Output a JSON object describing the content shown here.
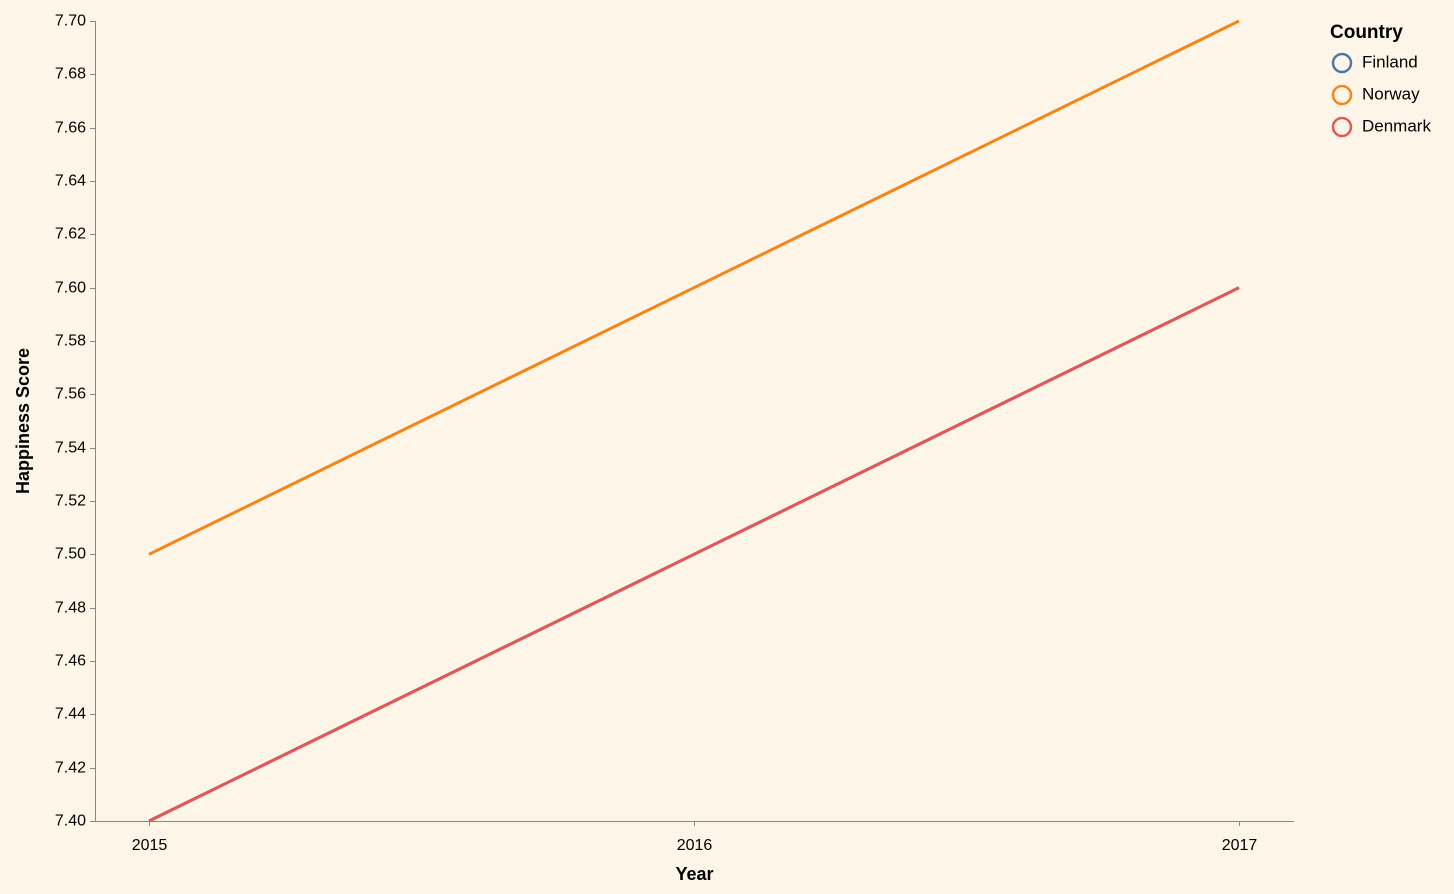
{
  "chart_data": {
    "type": "line",
    "xlabel": "Year",
    "ylabel": "Happiness Score",
    "x": [
      "2015",
      "2016",
      "2017"
    ],
    "ylim": [
      7.4,
      7.7
    ],
    "y_ticks": [
      "7.40",
      "7.42",
      "7.44",
      "7.46",
      "7.48",
      "7.50",
      "7.52",
      "7.54",
      "7.56",
      "7.58",
      "7.60",
      "7.62",
      "7.64",
      "7.66",
      "7.68",
      "7.70"
    ],
    "grid": false,
    "legend": {
      "title": "Country",
      "position": "top-right"
    },
    "series": [
      {
        "name": "Finland",
        "color": "#4c78a8",
        "values": [
          7.4,
          7.5,
          7.6
        ]
      },
      {
        "name": "Norway",
        "color": "#f58518",
        "values": [
          7.5,
          7.6,
          7.7
        ]
      },
      {
        "name": "Denmark",
        "color": "#e45756",
        "values": [
          7.4,
          7.5,
          7.6
        ]
      }
    ]
  }
}
